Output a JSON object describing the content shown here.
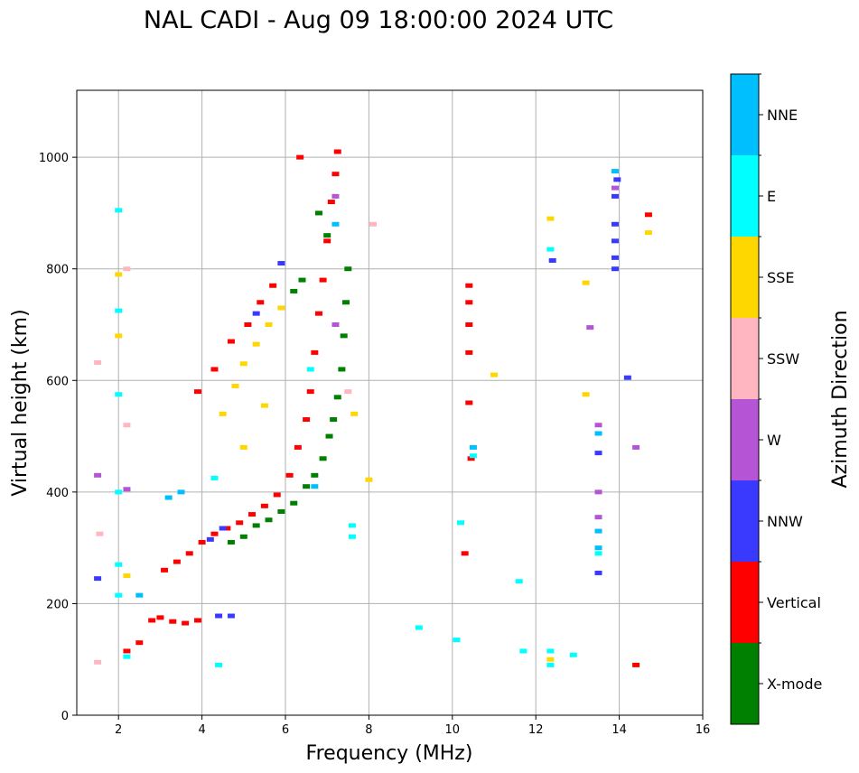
{
  "chart_data": {
    "type": "scatter",
    "title": "NAL CADI - Aug 09 18:00:00 2024 UTC",
    "xlabel": "Frequency (MHz)",
    "ylabel": "Virtual height (km)",
    "xlim": [
      1,
      16
    ],
    "ylim": [
      0,
      1120
    ],
    "xticks": [
      2,
      4,
      6,
      8,
      10,
      12,
      14,
      16
    ],
    "yticks": [
      0,
      200,
      400,
      600,
      800,
      1000
    ],
    "grid": true,
    "colorbar": {
      "label": "Azimuth Direction",
      "categories": [
        {
          "name": "X-mode",
          "color": "#008000"
        },
        {
          "name": "Vertical",
          "color": "#ff0000"
        },
        {
          "name": "NNW",
          "color": "#3a3aff"
        },
        {
          "name": "W",
          "color": "#b555d6"
        },
        {
          "name": "SSW",
          "color": "#ffb6c1"
        },
        {
          "name": "SSE",
          "color": "#ffd700"
        },
        {
          "name": "E",
          "color": "#00ffff"
        },
        {
          "name": "NNE",
          "color": "#00bfff"
        }
      ]
    },
    "traces": [
      {
        "name": "X-mode",
        "points": [
          [
            4.7,
            310
          ],
          [
            5.0,
            320
          ],
          [
            5.3,
            340
          ],
          [
            5.6,
            350
          ],
          [
            5.9,
            365
          ],
          [
            6.2,
            380
          ],
          [
            6.5,
            410
          ],
          [
            6.7,
            430
          ],
          [
            6.9,
            460
          ],
          [
            7.05,
            500
          ],
          [
            7.15,
            530
          ],
          [
            7.25,
            570
          ],
          [
            7.35,
            620
          ],
          [
            7.4,
            680
          ],
          [
            7.45,
            740
          ],
          [
            7.5,
            800
          ],
          [
            6.8,
            900
          ],
          [
            7.0,
            860
          ],
          [
            6.2,
            760
          ],
          [
            6.4,
            780
          ]
        ]
      },
      {
        "name": "Vertical",
        "points": [
          [
            2.2,
            115
          ],
          [
            2.5,
            130
          ],
          [
            2.8,
            170
          ],
          [
            3.0,
            175
          ],
          [
            3.3,
            168
          ],
          [
            3.6,
            165
          ],
          [
            3.9,
            170
          ],
          [
            3.1,
            260
          ],
          [
            3.4,
            275
          ],
          [
            3.7,
            290
          ],
          [
            4.0,
            310
          ],
          [
            4.3,
            325
          ],
          [
            4.6,
            335
          ],
          [
            4.9,
            345
          ],
          [
            5.2,
            360
          ],
          [
            5.5,
            375
          ],
          [
            5.8,
            395
          ],
          [
            6.1,
            430
          ],
          [
            6.3,
            480
          ],
          [
            6.5,
            530
          ],
          [
            6.6,
            580
          ],
          [
            6.7,
            650
          ],
          [
            6.8,
            720
          ],
          [
            6.9,
            780
          ],
          [
            7.0,
            850
          ],
          [
            7.1,
            920
          ],
          [
            7.2,
            970
          ],
          [
            7.25,
            1010
          ],
          [
            6.35,
            1000
          ],
          [
            4.3,
            620
          ],
          [
            4.7,
            670
          ],
          [
            5.1,
            700
          ],
          [
            5.4,
            740
          ],
          [
            5.7,
            770
          ],
          [
            3.9,
            580
          ],
          [
            10.3,
            290
          ],
          [
            10.45,
            460
          ],
          [
            10.4,
            560
          ],
          [
            10.4,
            650
          ],
          [
            10.4,
            700
          ],
          [
            10.4,
            740
          ],
          [
            10.4,
            770
          ],
          [
            14.7,
            897
          ],
          [
            14.4,
            90
          ]
        ]
      },
      {
        "name": "NNW",
        "points": [
          [
            1.5,
            245
          ],
          [
            4.4,
            178
          ],
          [
            4.7,
            178
          ],
          [
            4.2,
            315
          ],
          [
            4.5,
            335
          ],
          [
            12.4,
            815
          ],
          [
            13.9,
            800
          ],
          [
            13.9,
            820
          ],
          [
            13.9,
            850
          ],
          [
            13.9,
            880
          ],
          [
            13.9,
            930
          ],
          [
            13.95,
            960
          ],
          [
            13.5,
            255
          ],
          [
            13.5,
            470
          ],
          [
            14.2,
            605
          ],
          [
            5.9,
            810
          ],
          [
            5.3,
            720
          ]
        ]
      },
      {
        "name": "W",
        "points": [
          [
            13.5,
            520
          ],
          [
            13.5,
            400
          ],
          [
            13.5,
            355
          ],
          [
            13.3,
            695
          ],
          [
            14.4,
            480
          ],
          [
            13.9,
            945
          ],
          [
            1.5,
            430
          ],
          [
            2.2,
            405
          ],
          [
            7.2,
            700
          ],
          [
            7.2,
            930
          ]
        ]
      },
      {
        "name": "SSW",
        "points": [
          [
            1.5,
            632
          ],
          [
            1.55,
            325
          ],
          [
            1.5,
            95
          ],
          [
            8.1,
            880
          ],
          [
            7.5,
            580
          ],
          [
            2.2,
            520
          ],
          [
            2.2,
            800
          ]
        ]
      },
      {
        "name": "SSE",
        "points": [
          [
            4.8,
            590
          ],
          [
            5.0,
            630
          ],
          [
            5.3,
            665
          ],
          [
            5.6,
            700
          ],
          [
            5.9,
            730
          ],
          [
            4.5,
            540
          ],
          [
            5.0,
            480
          ],
          [
            5.5,
            555
          ],
          [
            12.35,
            890
          ],
          [
            13.2,
            775
          ],
          [
            13.2,
            575
          ],
          [
            14.7,
            865
          ],
          [
            11.0,
            610
          ],
          [
            7.65,
            540
          ],
          [
            8.0,
            422
          ],
          [
            2.0,
            790
          ],
          [
            2.0,
            680
          ],
          [
            2.2,
            250
          ],
          [
            12.35,
            100
          ]
        ]
      },
      {
        "name": "E",
        "points": [
          [
            2.0,
            905
          ],
          [
            2.0,
            725
          ],
          [
            2.0,
            575
          ],
          [
            2.0,
            400
          ],
          [
            2.0,
            270
          ],
          [
            2.0,
            215
          ],
          [
            2.2,
            105
          ],
          [
            4.3,
            425
          ],
          [
            7.6,
            320
          ],
          [
            7.6,
            340
          ],
          [
            9.2,
            157
          ],
          [
            10.1,
            135
          ],
          [
            10.2,
            345
          ],
          [
            10.5,
            465
          ],
          [
            11.6,
            240
          ],
          [
            11.7,
            115
          ],
          [
            12.35,
            115
          ],
          [
            12.35,
            90
          ],
          [
            12.9,
            108
          ],
          [
            12.35,
            835
          ],
          [
            13.5,
            290
          ],
          [
            6.6,
            620
          ],
          [
            4.4,
            90
          ]
        ]
      },
      {
        "name": "NNE",
        "points": [
          [
            3.5,
            400
          ],
          [
            3.2,
            390
          ],
          [
            2.5,
            215
          ],
          [
            13.5,
            330
          ],
          [
            13.5,
            300
          ],
          [
            13.5,
            505
          ],
          [
            13.9,
            975
          ],
          [
            6.7,
            410
          ],
          [
            7.2,
            880
          ],
          [
            10.5,
            480
          ]
        ]
      }
    ]
  }
}
